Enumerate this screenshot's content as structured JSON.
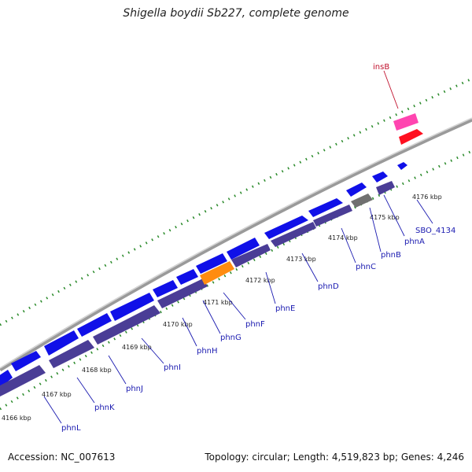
{
  "title": "Shigella boydii Sb227, complete genome",
  "footer": {
    "accession": "Accession: NC_007613",
    "summary": "Topology: circular; Length: 4,519,823 bp; Genes: 4,246"
  },
  "colors": {
    "backbone": "#a8a8a8",
    "tick_dots": "#2a8a2a",
    "gene_fwd": "#1010e8",
    "gene_rev": "#4a3d96",
    "highlight": "#ff8c10",
    "pseudo": "#707070",
    "insertion_top": "#ff45b0",
    "insertion": "#ff1020",
    "label_blue": "#1a1ab0",
    "label_red": "#c0102c"
  },
  "kbp_labels": [
    "4166 kbp",
    "4167 kbp",
    "4168 kbp",
    "4169 kbp",
    "4170 kbp",
    "4171 kbp",
    "4172 kbp",
    "4173 kbp",
    "4174 kbp",
    "4175 kbp",
    "4176 kbp"
  ],
  "gene_labels": [
    "phnL",
    "phnK",
    "phnJ",
    "phnI",
    "phnH",
    "phnG",
    "phnF",
    "phnE",
    "phnD",
    "phnC",
    "phnB",
    "phnA",
    "SBO_4134"
  ],
  "insertion_label": "insB"
}
